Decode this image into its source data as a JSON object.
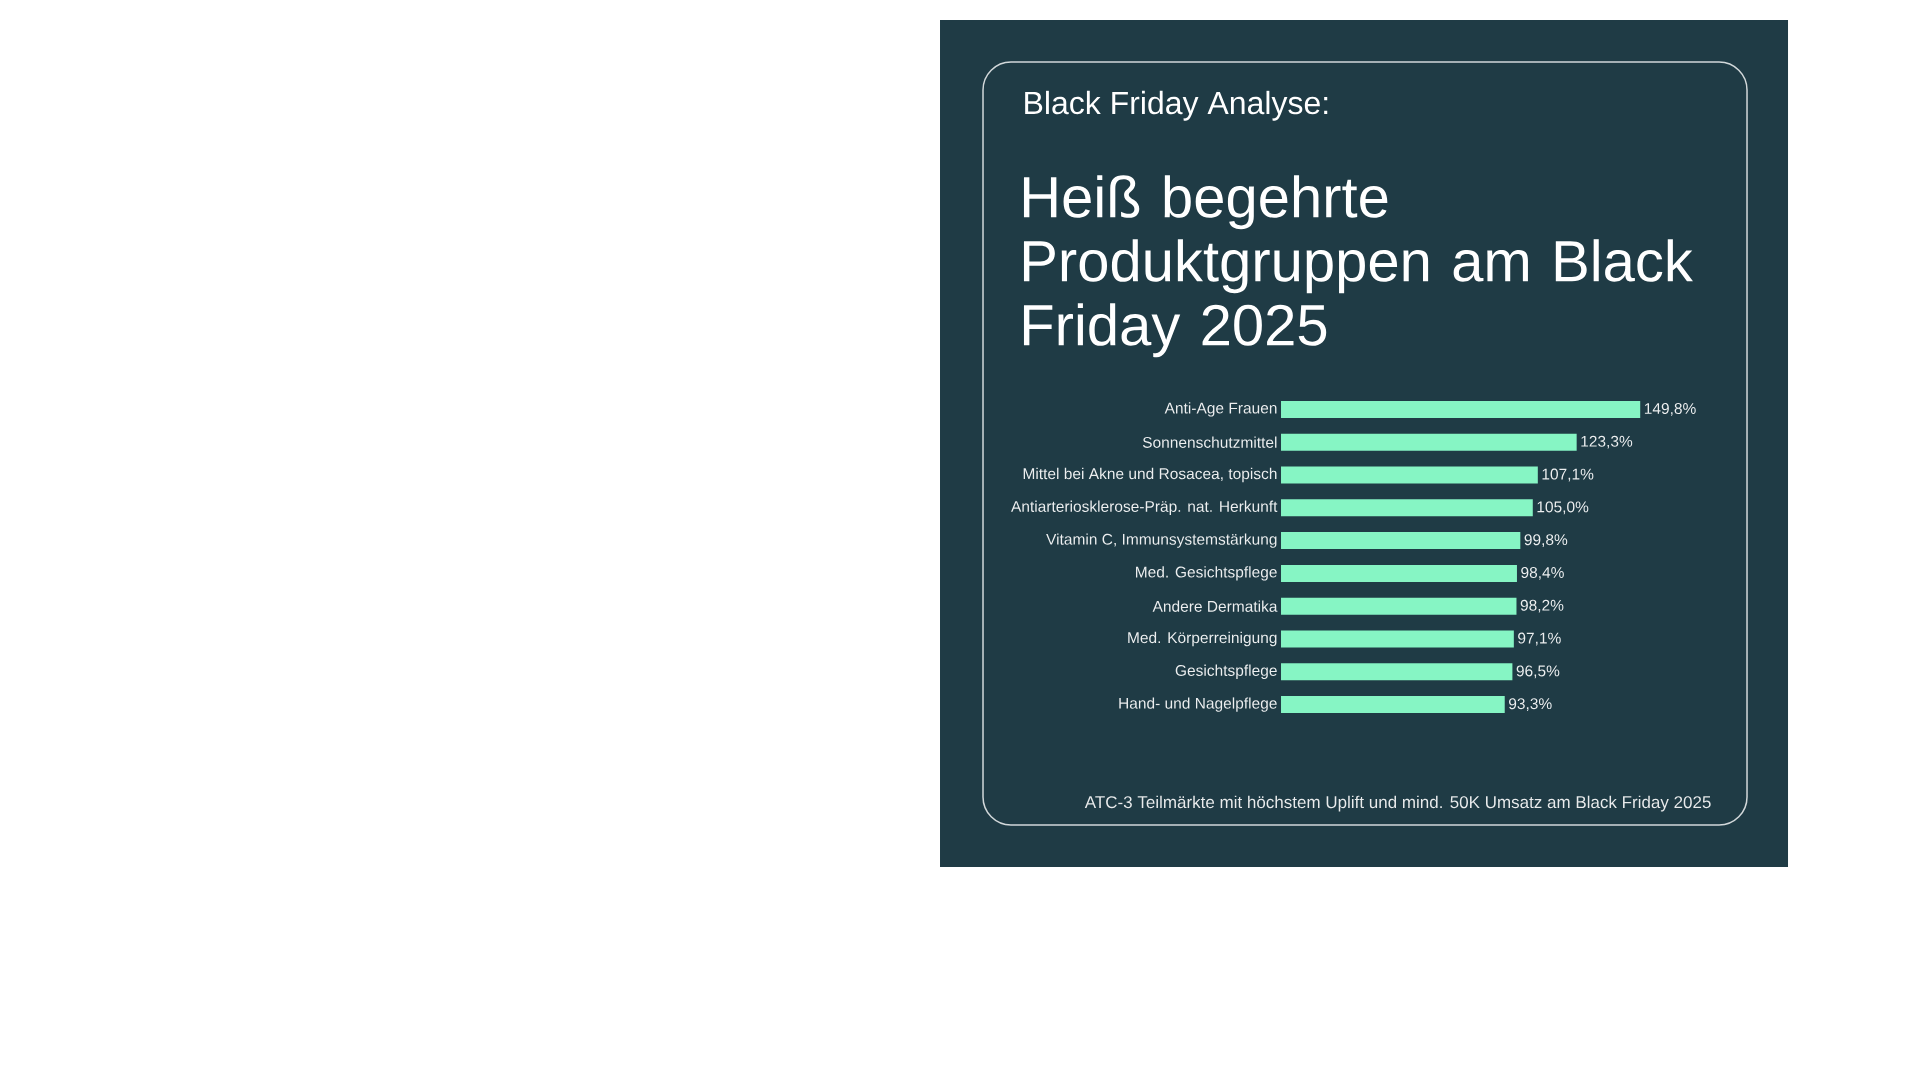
{
  "chart_data": {
    "type": "bar",
    "orientation": "horizontal",
    "subtitle": "Black Friday Analyse:",
    "title": "Heiß begehrte Produktgruppen am Black Friday 2025",
    "categories": [
      "Anti-Age Frauen",
      "Sonnenschutzmittel",
      "Mittel bei Akne und Rosacea, topisch",
      "Antiarteriosklerose-Präp. nat. Herkunft",
      "Vitamin C, Immunsystemstärkung",
      "Med. Gesichtspflege",
      "Andere Dermatika",
      "Med. Körperreinigung",
      "Gesichtspflege",
      "Hand- und Nagelpflege"
    ],
    "values": [
      149.8,
      123.3,
      107.1,
      105.0,
      99.8,
      98.4,
      98.2,
      97.1,
      96.5,
      93.3
    ],
    "value_labels": [
      "149,8%",
      "123,3%",
      "107,1%",
      "105,0%",
      "99,8%",
      "98,4%",
      "98,2%",
      "97,1%",
      "96,5%",
      "93,3%"
    ],
    "color": "#86f5c4",
    "tick_labels": "y",
    "annotations": [
      "ATC-3 Teilmärkte mit höchstem Uplift und mind. 50K Umsatz am Black Friday 2025"
    ]
  }
}
